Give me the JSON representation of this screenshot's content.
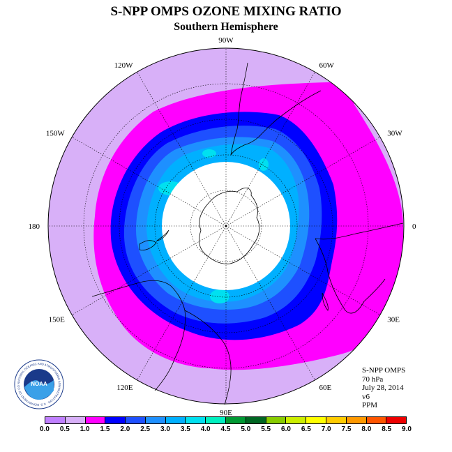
{
  "title": "S-NPP OMPS OZONE MIXING RATIO",
  "subtitle": "Southern Hemisphere",
  "longitude_labels": [
    {
      "text": "90W",
      "lon": -90
    },
    {
      "text": "60W",
      "lon": -60
    },
    {
      "text": "30W",
      "lon": -30
    },
    {
      "text": "0",
      "lon": 0
    },
    {
      "text": "30E",
      "lon": 30
    },
    {
      "text": "60E",
      "lon": 60
    },
    {
      "text": "90E",
      "lon": 90
    },
    {
      "text": "120E",
      "lon": 120
    },
    {
      "text": "150E",
      "lon": 150
    },
    {
      "text": "180",
      "lon": 180
    },
    {
      "text": "150W",
      "lon": -150
    },
    {
      "text": "120W",
      "lon": -120
    }
  ],
  "info": {
    "instrument": "S-NPP OMPS",
    "level": "70 hPa",
    "date": "July 28, 2014",
    "version": "v6",
    "units": "PPM"
  },
  "logo": {
    "text": "NOAA",
    "ring_text": "NATIONAL OCEANIC AND ATMOSPHERIC ADMINISTRATION · U.S. DEPARTMENT OF COMMERCE"
  },
  "colorbar": {
    "ticks": [
      "0.0",
      "0.5",
      "1.0",
      "1.5",
      "2.0",
      "2.5",
      "3.0",
      "3.5",
      "4.0",
      "4.5",
      "5.0",
      "5.5",
      "6.0",
      "6.5",
      "7.0",
      "7.5",
      "8.0",
      "8.5",
      "9.0"
    ],
    "colors": [
      "#c080ff",
      "#d8b0f8",
      "#ff00ff",
      "#0000ff",
      "#1e50ff",
      "#1e90ff",
      "#00b0ff",
      "#00e0f0",
      "#00f0c0",
      "#009933",
      "#006622",
      "#88cc00",
      "#ccee00",
      "#ffff00",
      "#ffcc00",
      "#ff9900",
      "#ff5500",
      "#ee0000",
      "#8b4513"
    ]
  },
  "chart_data": {
    "type": "heatmap",
    "title": "S-NPP OMPS OZONE MIXING RATIO",
    "subtitle": "Southern Hemisphere",
    "projection": "south polar stereographic",
    "units": "PPM",
    "pressure_level": "70 hPa",
    "date": "July 28, 2014",
    "version": "v6",
    "contour_levels": [
      0.0,
      0.5,
      1.0,
      1.5,
      2.0,
      2.5,
      3.0,
      3.5,
      4.0,
      4.5,
      5.0,
      5.5,
      6.0,
      6.5,
      7.0,
      7.5,
      8.0,
      8.5,
      9.0
    ],
    "value_bands": [
      {
        "range": [
          0.5,
          1.0
        ],
        "region": "lower latitudes, outer ring (Pacific sector)"
      },
      {
        "range": [
          1.0,
          1.5
        ],
        "region": "mid-latitude collar, widest over Atlantic / Indian Ocean"
      },
      {
        "range": [
          1.5,
          2.0
        ],
        "region": "vortex edge ring"
      },
      {
        "range": [
          2.0,
          3.5
        ],
        "region": "inside vortex edge, around Antarctica"
      },
      {
        "range": [
          3.5,
          4.0
        ],
        "region": "small patches inside vortex"
      }
    ],
    "no_data_region": "polar night cap over Antarctica"
  }
}
